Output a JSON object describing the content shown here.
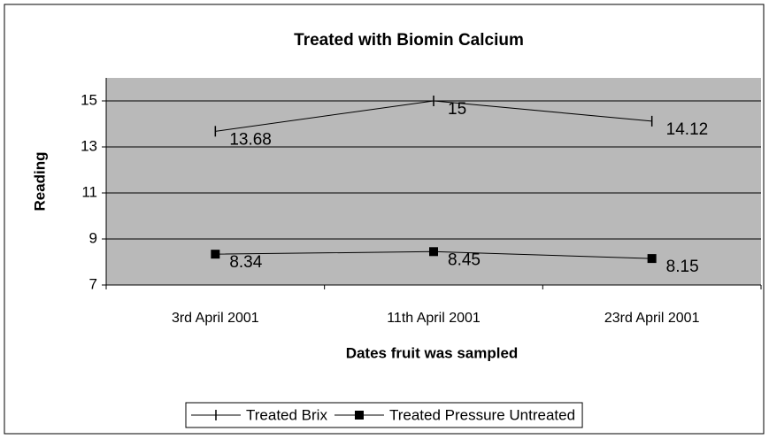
{
  "chart_data": {
    "type": "line",
    "title": "Treated with Biomin Calcium",
    "x_label": "Dates fruit was sampled",
    "y_label": "Reading",
    "categories": [
      "3rd April 2001",
      "11th April 2001",
      "23rd April 2001"
    ],
    "series": [
      {
        "name": "Treated Brix",
        "color": "#000000",
        "marker": "dash",
        "values": [
          13.68,
          15,
          14.12
        ]
      },
      {
        "name": "Treated Pressure Untreated",
        "color": "#000000",
        "marker": "square",
        "values": [
          8.34,
          8.45,
          8.15
        ]
      }
    ],
    "ylim": [
      7,
      16
    ],
    "yticks": [
      7,
      9,
      11,
      13,
      15
    ],
    "grid": true,
    "legend": "bottom",
    "plot_background": "#b9b9b9"
  }
}
